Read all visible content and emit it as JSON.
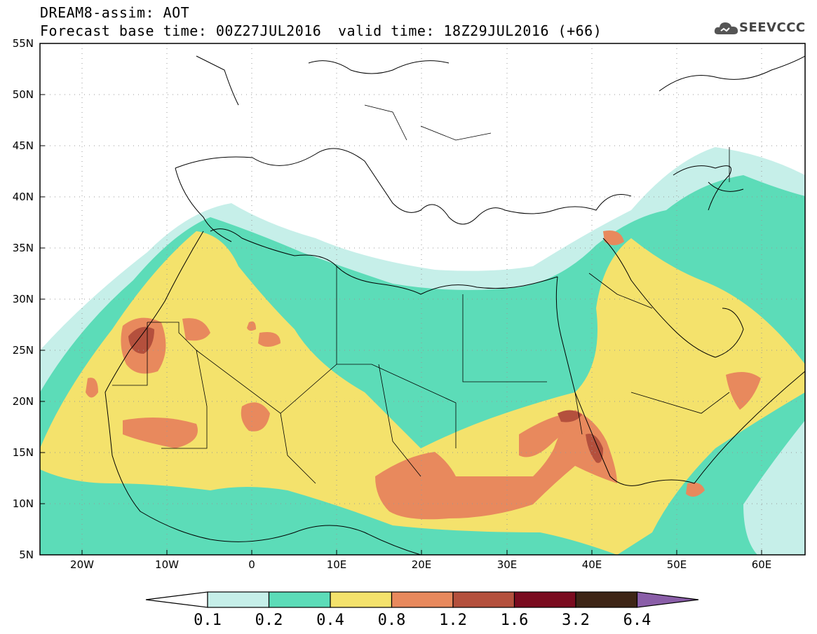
{
  "header": {
    "title": "DREAM8-assim: AOT",
    "base_time": "Forecast base time: 00Z27JUL2016",
    "valid_time": "valid time: 18Z29JUL2016 (+66)",
    "logo_text": "SEEVCCC"
  },
  "axes": {
    "lat_labels": [
      "55N",
      "50N",
      "45N",
      "40N",
      "35N",
      "30N",
      "25N",
      "20N",
      "15N",
      "10N",
      "5N"
    ],
    "lon_labels": [
      "20W",
      "10W",
      "0",
      "10E",
      "20E",
      "30E",
      "40E",
      "50E",
      "60E"
    ],
    "lat_range": [
      5,
      55
    ],
    "lon_range": [
      -25,
      65
    ]
  },
  "colorbar": {
    "levels": [
      "0.1",
      "0.2",
      "0.4",
      "0.8",
      "1.2",
      "1.6",
      "3.2",
      "6.4"
    ],
    "colors": [
      "#ffffff",
      "#c6efe9",
      "#5cdcb8",
      "#f4e26c",
      "#e8895d",
      "#b4503d",
      "#7a0b1f",
      "#3e2516",
      "#8a5ea8"
    ]
  }
}
